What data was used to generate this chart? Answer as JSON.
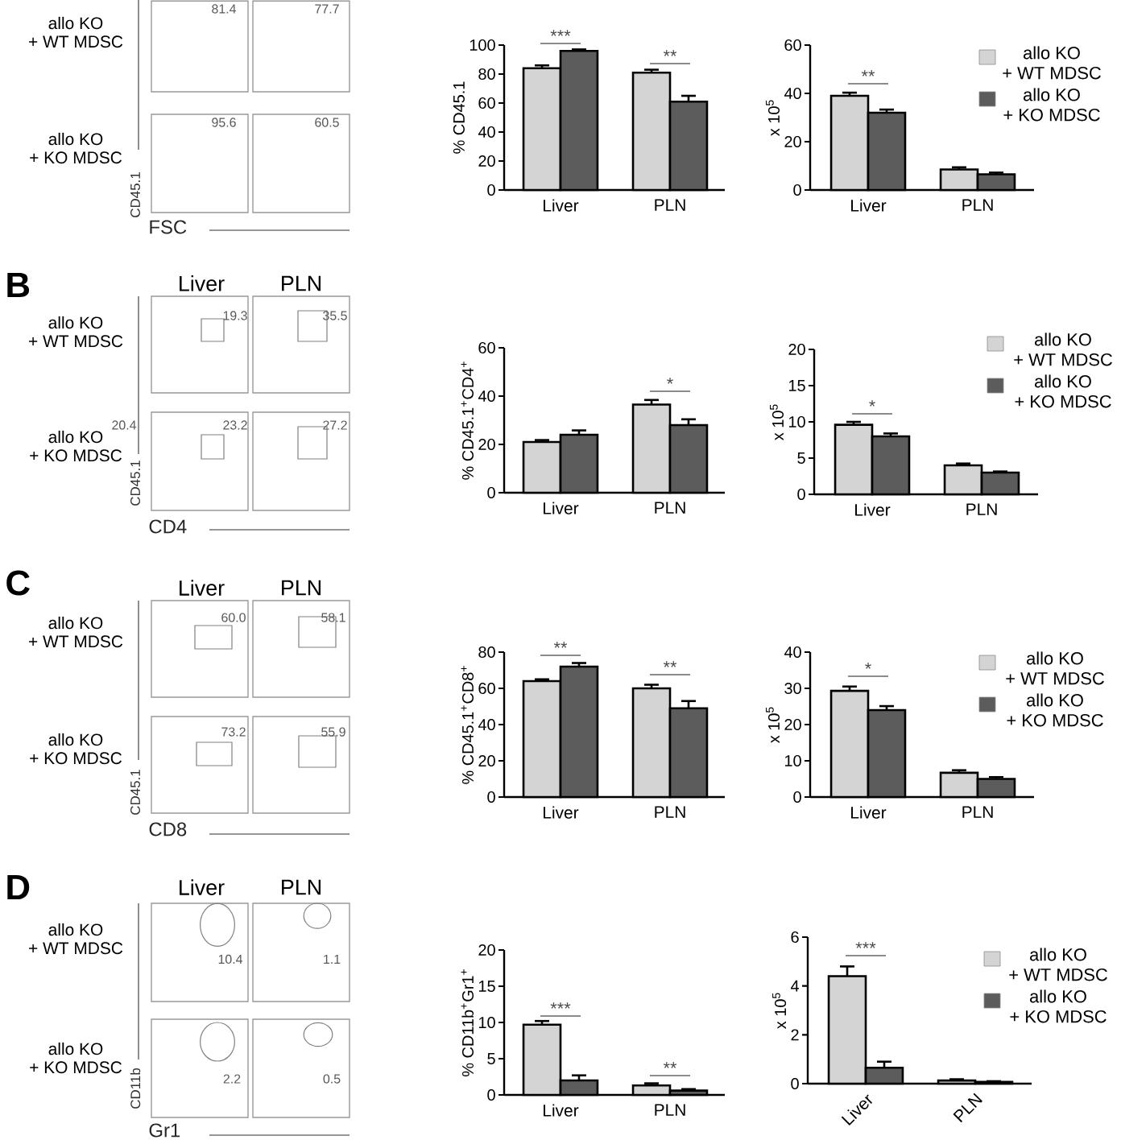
{
  "chart_data": [
    {
      "type": "other",
      "xlabel": "FSC",
      "ylabel": "CD45.1",
      "annotations": [
        "allo KO + WT MDSC",
        "81.4",
        "77.7",
        "allo KO + KO MDSC",
        "95.6",
        "60.5"
      ]
    },
    {
      "type": "bar",
      "categories": [
        "Liver",
        "PLN"
      ],
      "ylabel": "% CD45.1",
      "ylim": [
        0,
        100
      ],
      "yticks": [
        0,
        20,
        40,
        60,
        80,
        100
      ],
      "series": [
        {
          "color": "#d4d4d4",
          "values": [
            84,
            81
          ],
          "errors": [
            [
              84,
              86
            ],
            [
              81,
              83
            ]
          ]
        },
        {
          "color": "#5c5c5c",
          "values": [
            96,
            61
          ],
          "errors": [
            [
              96,
              97
            ],
            [
              61,
              65
            ]
          ]
        }
      ],
      "annotations": [
        "***",
        "**"
      ]
    },
    {
      "type": "bar",
      "categories": [
        "Liver",
        "PLN"
      ],
      "ylabel": "x 10$^{5}$",
      "ylim": [
        0,
        60
      ],
      "yticks": [
        0,
        20,
        40,
        60
      ],
      "legend": "right",
      "series": [
        {
          "name": "allo KO + WT MDSC",
          "color": "#d4d4d4",
          "values": [
            39,
            8.5
          ],
          "errors": [
            [
              39,
              40.3
            ],
            [
              8.5,
              9.4
            ]
          ]
        },
        {
          "name": "allo KO + KO MDSC",
          "color": "#5c5c5c",
          "values": [
            32,
            6.5
          ],
          "errors": [
            [
              32,
              33.3
            ],
            [
              6.5,
              7.2
            ]
          ]
        }
      ],
      "annotations": [
        "**"
      ]
    },
    {
      "type": "other",
      "title": "B",
      "categories": [
        "Liver",
        "PLN"
      ],
      "xlabel": "CD4",
      "ylabel": "CD45.1",
      "data_labels": true,
      "series": [
        {
          "name": "allo KO + WT MDSC",
          "values": [
            19.3,
            35.5
          ]
        },
        {
          "name": "allo KO + KO MDSC",
          "values": [
            23.2,
            27.2
          ]
        }
      ],
      "annotations": [
        "20.4"
      ]
    },
    {
      "type": "bar",
      "categories": [
        "Liver",
        "PLN"
      ],
      "ylabel": "% CD45.1$^{+}$CD4$^{+}$",
      "ylim": [
        0,
        60
      ],
      "yticks": [
        0,
        20,
        40,
        60
      ],
      "series": [
        {
          "color": "#d4d4d4",
          "values": [
            21,
            36.5
          ],
          "errors": [
            [
              21,
              21.8
            ],
            [
              36.5,
              38.4
            ]
          ]
        },
        {
          "color": "#5c5c5c",
          "values": [
            24,
            28
          ],
          "errors": [
            [
              24,
              25.8
            ],
            [
              28,
              30.4
            ]
          ]
        }
      ],
      "annotations": [
        "*"
      ]
    },
    {
      "type": "bar",
      "categories": [
        "Liver",
        "PLN"
      ],
      "ylabel": "x 10$^{5}$",
      "ylim": [
        0,
        20
      ],
      "yticks": [
        0,
        5,
        10,
        15,
        20
      ],
      "legend": "right",
      "series": [
        {
          "name": "allo KO + WT MDSC",
          "color": "#d4d4d4",
          "values": [
            9.6,
            4.0
          ],
          "errors": [
            [
              9.6,
              10.0
            ],
            [
              4.0,
              4.25
            ]
          ]
        },
        {
          "name": "allo KO + KO MDSC",
          "color": "#5c5c5c",
          "values": [
            8.0,
            3.0
          ],
          "errors": [
            [
              8.0,
              8.4
            ],
            [
              3.0,
              3.15
            ]
          ]
        }
      ],
      "annotations": [
        "*"
      ]
    },
    {
      "type": "other",
      "title": "C",
      "categories": [
        "Liver",
        "PLN"
      ],
      "xlabel": "CD8",
      "ylabel": "CD45.1",
      "series": [
        {
          "name": "allo KO + WT MDSC",
          "values": [
            60.0,
            58.1
          ],
          "value_labels": [
            "60.0",
            "58.1"
          ]
        },
        {
          "name": "allo KO + KO MDSC",
          "values": [
            73.2,
            55.9
          ],
          "value_labels": [
            "73.2",
            "55.9"
          ]
        }
      ]
    },
    {
      "type": "bar",
      "categories": [
        "Liver",
        "PLN"
      ],
      "ylabel": "% CD45.1$^{+}$CD8$^{+}$",
      "ylim": [
        0,
        80
      ],
      "yticks": [
        0,
        20,
        40,
        60,
        80
      ],
      "series": [
        {
          "color": "#d4d4d4",
          "values": [
            64,
            60
          ],
          "errors": [
            [
              64,
              65
            ],
            [
              60,
              62
            ]
          ]
        },
        {
          "color": "#5c5c5c",
          "values": [
            72,
            49
          ],
          "errors": [
            [
              72,
              74
            ],
            [
              49,
              53
            ]
          ]
        }
      ],
      "annotations": [
        "**",
        "**"
      ]
    },
    {
      "type": "bar",
      "categories": [
        "Liver",
        "PLN"
      ],
      "ylabel": "x 10$^{5}$",
      "ylim": [
        0,
        40
      ],
      "yticks": [
        0,
        10,
        20,
        30,
        40
      ],
      "legend": "right",
      "series": [
        {
          "name": "allo KO + WT MDSC",
          "color": "#d4d4d4",
          "values": [
            29.3,
            6.7
          ],
          "errors": [
            [
              29.3,
              30.5
            ],
            [
              6.7,
              7.4
            ]
          ]
        },
        {
          "name": "allo KO + KO MDSC",
          "color": "#5c5c5c",
          "values": [
            24,
            5.0
          ],
          "errors": [
            [
              24,
              25.1
            ],
            [
              5.0,
              5.5
            ]
          ]
        }
      ],
      "annotations": [
        "*"
      ]
    },
    {
      "type": "other",
      "title": "D",
      "categories": [
        "Liver",
        "PLN"
      ],
      "xlabel": "Gr1",
      "ylabel": "CD11b",
      "data_labels": true,
      "series": [
        {
          "name": "allo KO + WT MDSC",
          "values": [
            10.4,
            1.1
          ]
        },
        {
          "name": "allo KO + KO MDSC",
          "values": [
            2.2,
            0.5
          ]
        }
      ]
    },
    {
      "type": "bar",
      "categories": [
        "Liver",
        "PLN"
      ],
      "ylabel": "% CD11b$^{+}$Gr1$^{+}$",
      "ylim": [
        0,
        20
      ],
      "yticks": [
        0,
        5,
        10,
        15,
        20
      ],
      "series": [
        {
          "color": "#d4d4d4",
          "values": [
            9.7,
            1.3
          ],
          "errors": [
            [
              9.7,
              10.2
            ],
            [
              1.3,
              1.6
            ]
          ]
        },
        {
          "color": "#5c5c5c",
          "values": [
            2.0,
            0.6
          ],
          "errors": [
            [
              2.0,
              2.7
            ],
            [
              0.6,
              0.8
            ]
          ]
        }
      ],
      "annotations": [
        "***",
        "**"
      ]
    },
    {
      "type": "bar",
      "categories": [
        "Liver",
        "PLN"
      ],
      "ylabel": "x 10$^{5}$",
      "ylim": [
        0,
        6
      ],
      "yticks": [
        0,
        2,
        4,
        6
      ],
      "legend": "right",
      "series": [
        {
          "name": "allo KO + WT MDSC",
          "color": "#d4d4d4",
          "values": [
            4.4,
            0.13
          ],
          "errors": [
            [
              4.4,
              4.8
            ],
            [
              0.13,
              0.18
            ]
          ]
        },
        {
          "name": "allo KO + KO MDSC",
          "color": "#5c5c5c",
          "values": [
            0.65,
            0.07
          ],
          "errors": [
            [
              0.65,
              0.9
            ],
            [
              0.07,
              0.1
            ]
          ]
        }
      ],
      "annotations": [
        "***"
      ]
    }
  ]
}
